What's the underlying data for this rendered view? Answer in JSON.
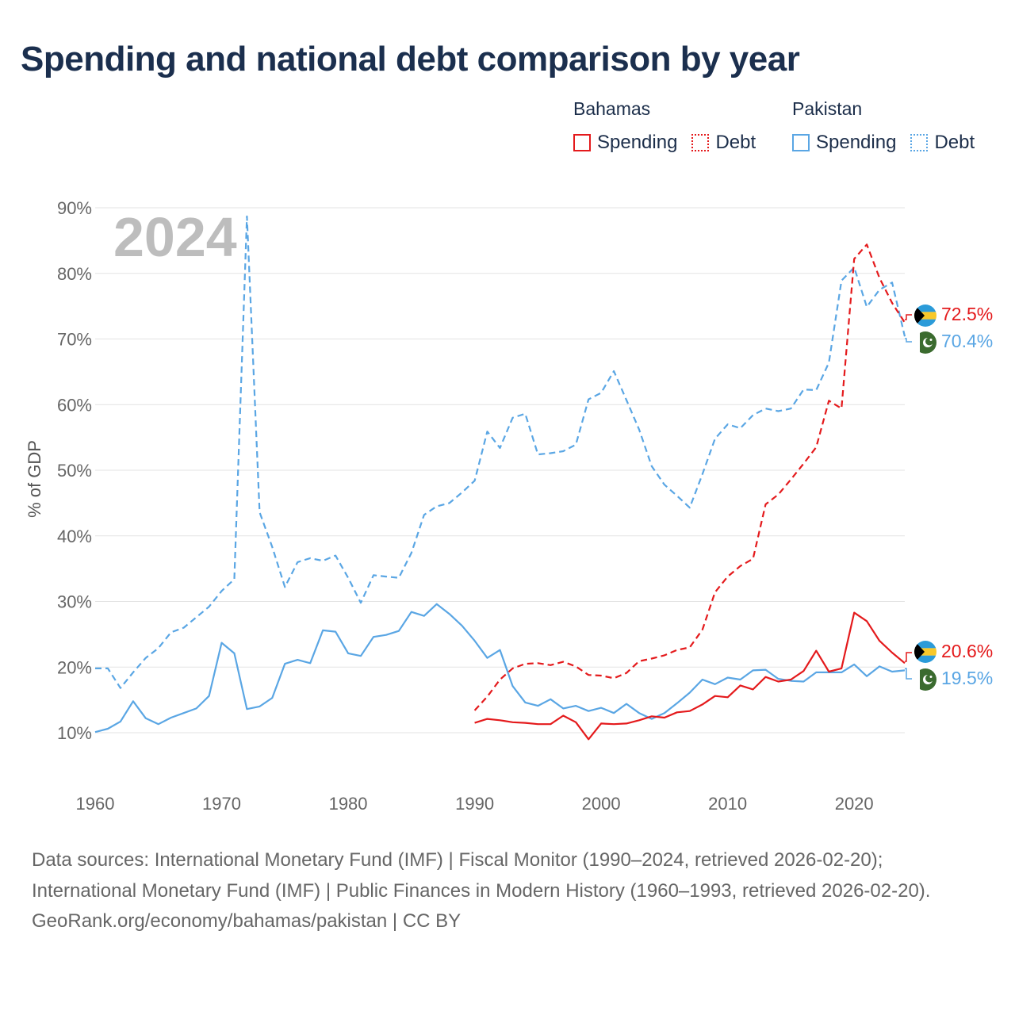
{
  "title": "Spending and national debt comparison by year",
  "legend": {
    "groups": [
      {
        "country": "Bahamas",
        "color": "#e41a1c",
        "items": [
          {
            "label": "Spending",
            "style": "solid"
          },
          {
            "label": "Debt",
            "style": "dotted"
          }
        ]
      },
      {
        "country": "Pakistan",
        "color": "#5aa6e4",
        "items": [
          {
            "label": "Spending",
            "style": "solid"
          },
          {
            "label": "Debt",
            "style": "dotted"
          }
        ]
      }
    ]
  },
  "year_watermark": "2024",
  "end_labels": {
    "bahamas_debt": "72.5%",
    "pakistan_debt": "70.4%",
    "bahamas_spending": "20.6%",
    "pakistan_spending": "19.5%"
  },
  "footer": {
    "sources": "Data sources: International Monetary Fund (IMF) | Fiscal Monitor (1990–2024, retrieved 2026-02-20); International Monetary Fund (IMF) | Public Finances in Modern History (1960–1993, retrieved 2026-02-20).",
    "credit": "GeoRank.org/economy/bahamas/pakistan | CC BY"
  },
  "chart_data": {
    "type": "line",
    "title": "Spending and national debt comparison by year",
    "xlabel": "",
    "ylabel": "% of GDP",
    "xlim": [
      1960,
      2024
    ],
    "ylim": [
      10,
      90
    ],
    "xticks": [
      1960,
      1970,
      1980,
      1990,
      2000,
      2010,
      2020
    ],
    "yticks": [
      10,
      20,
      30,
      40,
      50,
      60,
      70,
      80,
      90
    ],
    "ytick_labels": [
      "10%",
      "20%",
      "30%",
      "40%",
      "50%",
      "60%",
      "70%",
      "80%",
      "90%"
    ],
    "grid": true,
    "series": [
      {
        "name": "Pakistan Debt",
        "country": "Pakistan",
        "measure": "Debt",
        "color": "#5aa6e4",
        "dash": "dashed",
        "x": [
          1960,
          1961,
          1962,
          1963,
          1964,
          1965,
          1966,
          1967,
          1968,
          1969,
          1970,
          1971,
          1972,
          1973,
          1974,
          1975,
          1976,
          1977,
          1978,
          1979,
          1980,
          1981,
          1982,
          1983,
          1984,
          1985,
          1986,
          1987,
          1988,
          1989,
          1990,
          1991,
          1992,
          1993,
          1994,
          1995,
          1996,
          1997,
          1998,
          1999,
          2000,
          2001,
          2002,
          2003,
          2004,
          2005,
          2006,
          2007,
          2008,
          2009,
          2010,
          2011,
          2012,
          2013,
          2014,
          2015,
          2016,
          2017,
          2018,
          2019,
          2020,
          2021,
          2022,
          2023,
          2024
        ],
        "values": [
          19.8,
          19.8,
          16.8,
          19.2,
          21.4,
          22.9,
          25.3,
          26.0,
          27.6,
          29.2,
          31.6,
          33.4,
          88.7,
          43.6,
          38.3,
          32.2,
          36.0,
          36.6,
          36.2,
          37.0,
          33.6,
          29.8,
          34.0,
          33.8,
          33.6,
          37.4,
          43.2,
          44.5,
          45.0,
          46.6,
          48.4,
          55.9,
          53.4,
          58.0,
          58.6,
          52.4,
          52.6,
          52.9,
          53.9,
          60.8,
          61.8,
          65.1,
          60.7,
          56.2,
          50.6,
          47.8,
          46.1,
          44.3,
          49.4,
          54.8,
          57.0,
          56.4,
          58.4,
          59.4,
          59.0,
          59.4,
          62.3,
          62.2,
          66.4,
          78.9,
          80.9,
          74.9,
          77.5,
          78.6,
          70.4
        ]
      },
      {
        "name": "Pakistan Spending",
        "country": "Pakistan",
        "measure": "Spending",
        "color": "#5aa6e4",
        "dash": "solid",
        "x": [
          1960,
          1961,
          1962,
          1963,
          1964,
          1965,
          1966,
          1967,
          1968,
          1969,
          1970,
          1971,
          1972,
          1973,
          1974,
          1975,
          1976,
          1977,
          1978,
          1979,
          1980,
          1981,
          1982,
          1983,
          1984,
          1985,
          1986,
          1987,
          1988,
          1989,
          1990,
          1991,
          1992,
          1993,
          1994,
          1995,
          1996,
          1997,
          1998,
          1999,
          2000,
          2001,
          2002,
          2003,
          2004,
          2005,
          2006,
          2007,
          2008,
          2009,
          2010,
          2011,
          2012,
          2013,
          2014,
          2015,
          2016,
          2017,
          2018,
          2019,
          2020,
          2021,
          2022,
          2023,
          2024
        ],
        "values": [
          10.1,
          10.6,
          11.7,
          14.8,
          12.2,
          11.3,
          12.3,
          13.0,
          13.7,
          15.6,
          23.7,
          22.1,
          13.6,
          14.0,
          15.3,
          20.5,
          21.1,
          20.6,
          25.6,
          25.4,
          22.1,
          21.7,
          24.6,
          24.9,
          25.5,
          28.4,
          27.8,
          29.6,
          28.1,
          26.3,
          24.0,
          21.4,
          22.6,
          17.1,
          14.6,
          14.1,
          15.1,
          13.7,
          14.1,
          13.3,
          13.8,
          13.0,
          14.4,
          13.0,
          12.1,
          13.0,
          14.5,
          16.1,
          18.1,
          17.4,
          18.4,
          18.1,
          19.5,
          19.6,
          18.2,
          17.9,
          17.8,
          19.2,
          19.2,
          19.2,
          20.4,
          18.6,
          20.1,
          19.3,
          19.5
        ]
      },
      {
        "name": "Bahamas Debt",
        "country": "Bahamas",
        "measure": "Debt",
        "color": "#e41a1c",
        "dash": "dashed",
        "x": [
          1990,
          1991,
          1992,
          1993,
          1994,
          1995,
          1996,
          1997,
          1998,
          1999,
          2000,
          2001,
          2002,
          2003,
          2004,
          2005,
          2006,
          2007,
          2008,
          2009,
          2010,
          2011,
          2012,
          2013,
          2014,
          2015,
          2016,
          2017,
          2018,
          2019,
          2020,
          2021,
          2022,
          2023,
          2024
        ],
        "values": [
          13.4,
          15.5,
          18.1,
          19.8,
          20.5,
          20.6,
          20.3,
          20.8,
          20.1,
          18.8,
          18.7,
          18.3,
          19.1,
          20.9,
          21.3,
          21.8,
          22.6,
          23.0,
          25.7,
          31.4,
          33.8,
          35.4,
          36.5,
          44.8,
          46.3,
          48.6,
          51.0,
          53.5,
          60.6,
          59.4,
          82.2,
          84.4,
          79.3,
          75.5,
          72.5
        ]
      },
      {
        "name": "Bahamas Spending",
        "country": "Bahamas",
        "measure": "Spending",
        "color": "#e41a1c",
        "dash": "solid",
        "x": [
          1990,
          1991,
          1992,
          1993,
          1994,
          1995,
          1996,
          1997,
          1998,
          1999,
          2000,
          2001,
          2002,
          2003,
          2004,
          2005,
          2006,
          2007,
          2008,
          2009,
          2010,
          2011,
          2012,
          2013,
          2014,
          2015,
          2016,
          2017,
          2018,
          2019,
          2020,
          2021,
          2022,
          2023,
          2024
        ],
        "values": [
          11.5,
          12.1,
          11.9,
          11.6,
          11.5,
          11.3,
          11.3,
          12.6,
          11.6,
          9.0,
          11.4,
          11.3,
          11.4,
          11.9,
          12.5,
          12.3,
          13.1,
          13.3,
          14.3,
          15.6,
          15.4,
          17.2,
          16.6,
          18.5,
          17.8,
          18.1,
          19.4,
          22.5,
          19.3,
          19.8,
          28.3,
          27.0,
          24.0,
          22.2,
          20.6
        ]
      }
    ]
  }
}
